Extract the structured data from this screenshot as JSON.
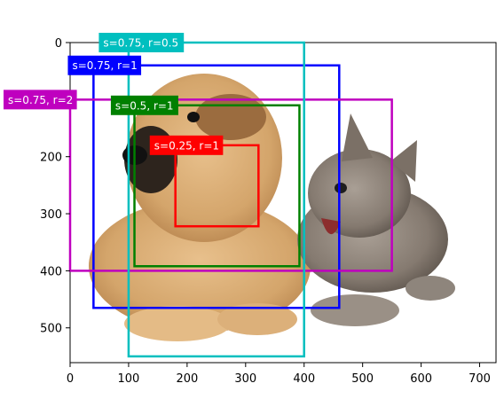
{
  "chart_data": {
    "type": "bounding-box-overlay",
    "image_subject": "puppy and kitten photo",
    "xlim": [
      0,
      728
    ],
    "ylim": [
      0,
      561
    ],
    "y_inverted": true,
    "x_ticks": [
      0,
      100,
      200,
      300,
      400,
      500,
      600,
      700
    ],
    "y_ticks": [
      0,
      100,
      200,
      300,
      400,
      500
    ],
    "boxes": [
      {
        "label": "s=0.75, r=1",
        "color": "#0000ff",
        "x1": 40,
        "y1": 40,
        "x2": 460,
        "y2": 465
      },
      {
        "label": "s=0.5, r=1",
        "color": "#008000",
        "x1": 110,
        "y1": 110,
        "x2": 392,
        "y2": 392
      },
      {
        "label": "s=0.25, r=1",
        "color": "#ff0000",
        "x1": 180,
        "y1": 180,
        "x2": 322,
        "y2": 322
      },
      {
        "label": "s=0.75, r=2",
        "color": "#bf00bf",
        "x1": 0,
        "y1": 100,
        "x2": 550,
        "y2": 400
      },
      {
        "label": "s=0.75, r=0.5",
        "color": "#00bfbf",
        "x1": 100,
        "y1": 0,
        "x2": 400,
        "y2": 550
      }
    ]
  }
}
